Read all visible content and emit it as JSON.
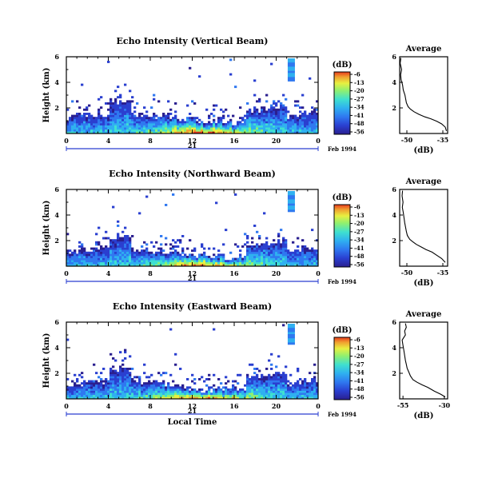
{
  "chart_data": [
    {
      "type": "heatmap",
      "title": "Echo Intensity (Vertical Beam)",
      "ylabel": "Height (km)",
      "xlabel": "",
      "x_ticks": [
        "0",
        "4",
        "8",
        "12",
        "16",
        "20",
        "0"
      ],
      "y_ticks": [
        "2",
        "4",
        "6"
      ],
      "date_label": "21",
      "month_label": "Feb 1994",
      "xlim": [
        0,
        24
      ],
      "ylim": [
        0,
        6
      ],
      "colorbar": {
        "unit": "(dB)",
        "ticks": [
          "-6",
          "-13",
          "-20",
          "-27",
          "-34",
          "-41",
          "-48",
          "-56"
        ]
      },
      "surface_base_km": 1.1,
      "profile": {
        "title": "Average",
        "xlabel": "(dB)",
        "x_ticks": [
          "-50",
          "-35"
        ],
        "y_ticks": [
          "2",
          "4",
          "6"
        ],
        "xlim": [
          -53,
          -33
        ],
        "x": [
          -52.5,
          -52.8,
          -52.2,
          -52.6,
          -52.4,
          -51.8,
          -51.5,
          -50.8,
          -50.5,
          -50.2,
          -49.5,
          -48.5,
          -47.0,
          -45.0,
          -42.5,
          -40.0,
          -37.5,
          -35.5,
          -34.0,
          -33.5
        ],
        "y": [
          5.9,
          5.5,
          5.0,
          4.6,
          4.2,
          3.8,
          3.4,
          3.0,
          2.7,
          2.4,
          2.1,
          1.9,
          1.7,
          1.5,
          1.3,
          1.15,
          0.95,
          0.75,
          0.5,
          0.2
        ]
      }
    },
    {
      "type": "heatmap",
      "title": "Echo Intensity (Northward Beam)",
      "ylabel": "Height (km)",
      "xlabel": "",
      "x_ticks": [
        "0",
        "4",
        "8",
        "12",
        "16",
        "20",
        "0"
      ],
      "y_ticks": [
        "2",
        "4",
        "6"
      ],
      "date_label": "21",
      "month_label": "Feb 1994",
      "xlim": [
        0,
        24
      ],
      "ylim": [
        0,
        6
      ],
      "colorbar": {
        "unit": "(dB)",
        "ticks": [
          "-6",
          "-13",
          "-20",
          "-27",
          "-34",
          "-41",
          "-48",
          "-56"
        ]
      },
      "surface_base_km": 0.9,
      "profile": {
        "title": "Average",
        "xlabel": "(dB)",
        "x_ticks": [
          "-50",
          "-35"
        ],
        "y_ticks": [
          "2",
          "4",
          "6"
        ],
        "xlim": [
          -53,
          -33
        ],
        "x": [
          -51.8,
          -52.0,
          -51.6,
          -51.9,
          -51.5,
          -51.2,
          -50.9,
          -50.5,
          -50.2,
          -49.8,
          -48.8,
          -47.5,
          -46.0,
          -44.0,
          -42.0,
          -39.5,
          -37.5,
          -35.5,
          -34.0
        ],
        "y": [
          5.9,
          5.5,
          5.0,
          4.6,
          4.2,
          3.8,
          3.4,
          3.0,
          2.7,
          2.4,
          2.1,
          1.9,
          1.7,
          1.5,
          1.3,
          1.1,
          0.85,
          0.6,
          0.3
        ]
      }
    },
    {
      "type": "heatmap",
      "title": "Echo Intensity (Eastward Beam)",
      "ylabel": "Height (km)",
      "xlabel": "Local Time",
      "x_ticks": [
        "0",
        "4",
        "8",
        "12",
        "16",
        "20",
        "0"
      ],
      "y_ticks": [
        "2",
        "4",
        "6"
      ],
      "date_label": "21",
      "month_label": "Feb 1994",
      "xlim": [
        0,
        24
      ],
      "ylim": [
        0,
        6
      ],
      "colorbar": {
        "unit": "(dB)",
        "ticks": [
          "-6",
          "-13",
          "-20",
          "-27",
          "-34",
          "-41",
          "-48",
          "-56"
        ]
      },
      "surface_base_km": 0.9,
      "profile": {
        "title": "Average",
        "xlabel": "(dB)",
        "x_ticks": [
          "-55",
          "-30"
        ],
        "y_ticks": [
          "2",
          "4",
          "6"
        ],
        "xlim": [
          -57,
          -28
        ],
        "x": [
          -53.5,
          -53.0,
          -54.0,
          -53.5,
          -55.5,
          -55.0,
          -54.5,
          -54.0,
          -53.5,
          -53.0,
          -52.5,
          -51.5,
          -50.5,
          -49.0,
          -46.5,
          -43.5,
          -40.0,
          -36.0,
          -32.0,
          -29.5
        ],
        "y": [
          5.9,
          5.6,
          5.3,
          5.0,
          4.6,
          4.2,
          3.8,
          3.4,
          3.0,
          2.7,
          2.4,
          2.1,
          1.8,
          1.5,
          1.3,
          1.1,
          0.9,
          0.6,
          0.35,
          0.15
        ]
      }
    }
  ],
  "colors": {
    "colormap": [
      "#2a1f8f",
      "#2a3fd0",
      "#2f78f0",
      "#2fb0f0",
      "#3fe0d0",
      "#8ff070",
      "#e8f040",
      "#f0a030",
      "#e83a1c"
    ],
    "axis": "#000000",
    "date_marker": "#2a3fd0"
  }
}
